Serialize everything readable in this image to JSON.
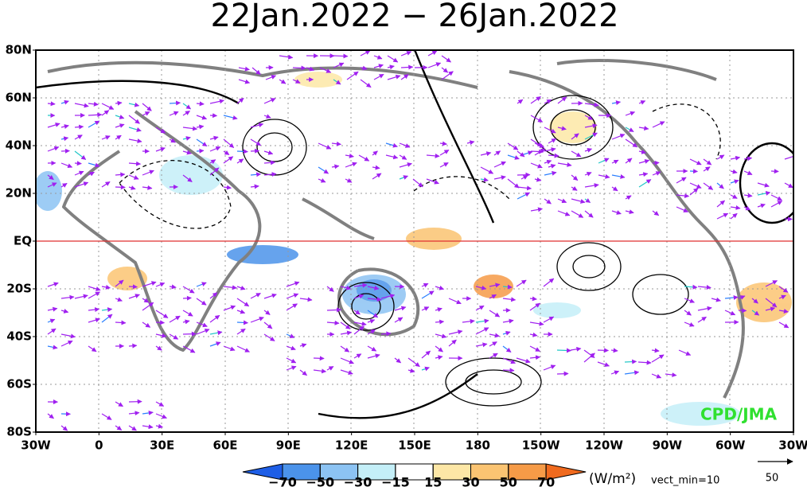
{
  "title": "22Jan.2022 − 26Jan.2022",
  "lat_labels": [
    "80N",
    "60N",
    "40N",
    "20N",
    "EQ",
    "20S",
    "40S",
    "60S",
    "80S"
  ],
  "lon_labels": [
    "30W",
    "0",
    "30E",
    "60E",
    "90E",
    "120E",
    "150E",
    "180",
    "150W",
    "120W",
    "90W",
    "60W",
    "30W"
  ],
  "colorbar": {
    "ticks": [
      {
        "value": -70,
        "label": "−70"
      },
      {
        "value": -50,
        "label": "−50"
      },
      {
        "value": -30,
        "label": "−30"
      },
      {
        "value": -15,
        "label": "−15"
      },
      15,
      30,
      50,
      70
    ],
    "colors": [
      "#1e5ee6",
      "#4b93ea",
      "#8cc3f3",
      "#c4eff8",
      "#ffffff",
      "#fde7a6",
      "#fbc472",
      "#f69b47",
      "#f06a1e"
    ],
    "unit": "(W/m²)"
  },
  "vector_min_label": "vect_min=10",
  "reference_vector": "50",
  "credit": "CPD/JMA"
}
